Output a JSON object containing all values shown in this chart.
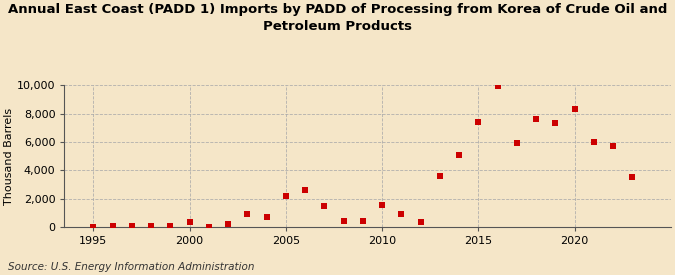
{
  "title": "Annual East Coast (PADD 1) Imports by PADD of Processing from Korea of Crude Oil and\nPetroleum Products",
  "ylabel": "Thousand Barrels",
  "source": "Source: U.S. Energy Information Administration",
  "background_color": "#f5e6c8",
  "years": [
    1995,
    1996,
    1997,
    1998,
    1999,
    2000,
    2001,
    2002,
    2003,
    2004,
    2005,
    2006,
    2007,
    2008,
    2009,
    2010,
    2011,
    2012,
    2013,
    2014,
    2015,
    2016,
    2017,
    2018,
    2019,
    2020,
    2021,
    2022,
    2023
  ],
  "values": [
    10,
    50,
    60,
    80,
    50,
    350,
    20,
    250,
    900,
    700,
    2200,
    2600,
    1500,
    450,
    450,
    1550,
    900,
    350,
    3600,
    5100,
    7400,
    9950,
    5900,
    7600,
    7300,
    8300,
    6000,
    5700,
    3500
  ],
  "marker_color": "#cc0000",
  "marker_size": 25,
  "ylim": [
    0,
    10000
  ],
  "xlim": [
    1993.5,
    2025.0
  ],
  "yticks": [
    0,
    2000,
    4000,
    6000,
    8000,
    10000
  ],
  "xticks": [
    1995,
    2000,
    2005,
    2010,
    2015,
    2020
  ],
  "grid_color": "#aaaaaa",
  "title_fontsize": 9.5,
  "axis_label_fontsize": 8,
  "tick_fontsize": 8,
  "source_fontsize": 7.5
}
